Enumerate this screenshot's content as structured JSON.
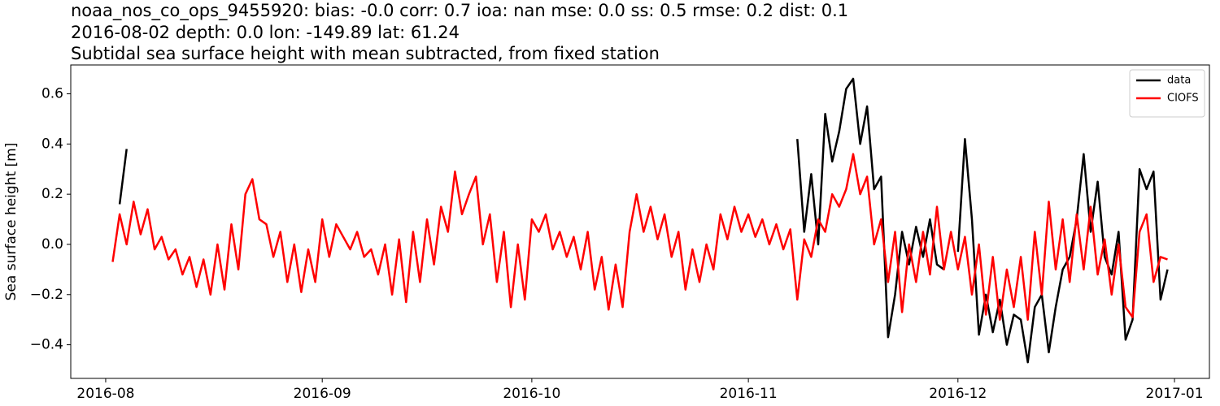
{
  "chart_data": {
    "type": "line",
    "title": [
      "noaa_nos_co_ops_9455920: bias: -0.0  corr: 0.7  ioa: nan  mse: 0.0  ss: 0.5  rmse: 0.2  dist: 0.1",
      "2016-08-02 depth: 0.0 lon: -149.89 lat: 61.24",
      "Subtidal sea surface height with mean subtracted, from fixed station"
    ],
    "ylabel": "Sea surface height [m]",
    "x": [
      "2016-08-02",
      "2016-08-03",
      "2016-08-04",
      "2016-08-05",
      "2016-08-06",
      "2016-08-07",
      "2016-08-08",
      "2016-08-09",
      "2016-08-10",
      "2016-08-11",
      "2016-08-12",
      "2016-08-13",
      "2016-08-14",
      "2016-08-15",
      "2016-08-16",
      "2016-08-17",
      "2016-08-18",
      "2016-08-19",
      "2016-08-20",
      "2016-08-21",
      "2016-08-22",
      "2016-08-23",
      "2016-08-24",
      "2016-08-25",
      "2016-08-26",
      "2016-08-27",
      "2016-08-28",
      "2016-08-29",
      "2016-08-30",
      "2016-08-31",
      "2016-09-01",
      "2016-09-02",
      "2016-09-03",
      "2016-09-04",
      "2016-09-05",
      "2016-09-06",
      "2016-09-07",
      "2016-09-08",
      "2016-09-09",
      "2016-09-10",
      "2016-09-11",
      "2016-09-12",
      "2016-09-13",
      "2016-09-14",
      "2016-09-15",
      "2016-09-16",
      "2016-09-17",
      "2016-09-18",
      "2016-09-19",
      "2016-09-20",
      "2016-09-21",
      "2016-09-22",
      "2016-09-23",
      "2016-09-24",
      "2016-09-25",
      "2016-09-26",
      "2016-09-27",
      "2016-09-28",
      "2016-09-29",
      "2016-09-30",
      "2016-10-01",
      "2016-10-02",
      "2016-10-03",
      "2016-10-04",
      "2016-10-05",
      "2016-10-06",
      "2016-10-07",
      "2016-10-08",
      "2016-10-09",
      "2016-10-10",
      "2016-10-11",
      "2016-10-12",
      "2016-10-13",
      "2016-10-14",
      "2016-10-15",
      "2016-10-16",
      "2016-10-17",
      "2016-10-18",
      "2016-10-19",
      "2016-10-20",
      "2016-10-21",
      "2016-10-22",
      "2016-10-23",
      "2016-10-24",
      "2016-10-25",
      "2016-10-26",
      "2016-10-27",
      "2016-10-28",
      "2016-10-29",
      "2016-10-30",
      "2016-10-31",
      "2016-11-01",
      "2016-11-02",
      "2016-11-03",
      "2016-11-04",
      "2016-11-05",
      "2016-11-06",
      "2016-11-07",
      "2016-11-08",
      "2016-11-09",
      "2016-11-10",
      "2016-11-11",
      "2016-11-12",
      "2016-11-13",
      "2016-11-14",
      "2016-11-15",
      "2016-11-16",
      "2016-11-17",
      "2016-11-18",
      "2016-11-19",
      "2016-11-20",
      "2016-11-21",
      "2016-11-22",
      "2016-11-23",
      "2016-11-24",
      "2016-11-25",
      "2016-11-26",
      "2016-11-27",
      "2016-11-28",
      "2016-11-29",
      "2016-11-30",
      "2016-12-01",
      "2016-12-02",
      "2016-12-03",
      "2016-12-04",
      "2016-12-05",
      "2016-12-06",
      "2016-12-07",
      "2016-12-08",
      "2016-12-09",
      "2016-12-10",
      "2016-12-11",
      "2016-12-12",
      "2016-12-13",
      "2016-12-14",
      "2016-12-15",
      "2016-12-16",
      "2016-12-17",
      "2016-12-18",
      "2016-12-19",
      "2016-12-20",
      "2016-12-21",
      "2016-12-22",
      "2016-12-23",
      "2016-12-24",
      "2016-12-25",
      "2016-12-26",
      "2016-12-27",
      "2016-12-28",
      "2016-12-29",
      "2016-12-30",
      "2016-12-31"
    ],
    "series": [
      {
        "name": "data",
        "color": "#000000",
        "values": [
          null,
          0.16,
          0.38,
          null,
          null,
          null,
          null,
          null,
          null,
          null,
          null,
          null,
          null,
          null,
          null,
          null,
          null,
          null,
          null,
          null,
          null,
          null,
          null,
          null,
          null,
          null,
          null,
          null,
          null,
          null,
          null,
          null,
          null,
          null,
          null,
          null,
          null,
          null,
          null,
          null,
          null,
          null,
          null,
          null,
          null,
          null,
          null,
          null,
          null,
          null,
          null,
          null,
          null,
          null,
          null,
          null,
          null,
          null,
          null,
          null,
          null,
          null,
          null,
          null,
          null,
          null,
          null,
          null,
          null,
          null,
          null,
          null,
          null,
          null,
          null,
          null,
          null,
          null,
          null,
          null,
          null,
          null,
          null,
          null,
          null,
          null,
          null,
          null,
          null,
          null,
          null,
          null,
          null,
          null,
          null,
          null,
          null,
          null,
          0.42,
          0.05,
          0.28,
          0.0,
          0.52,
          0.33,
          0.45,
          0.62,
          0.66,
          0.4,
          0.55,
          0.22,
          0.27,
          -0.37,
          -0.2,
          0.05,
          -0.08,
          0.07,
          -0.05,
          0.1,
          -0.08,
          -0.1,
          null,
          -0.03,
          0.42,
          0.1,
          -0.36,
          -0.2,
          -0.35,
          -0.22,
          -0.4,
          -0.28,
          -0.3,
          -0.47,
          -0.25,
          -0.2,
          -0.43,
          -0.25,
          -0.1,
          -0.05,
          0.1,
          0.36,
          0.05,
          0.25,
          -0.05,
          -0.12,
          0.05,
          -0.38,
          -0.3,
          0.3,
          0.22,
          0.29,
          -0.22,
          -0.1
        ]
      },
      {
        "name": "CIOFS",
        "color": "#ff0000",
        "values": [
          -0.07,
          0.12,
          0.0,
          0.17,
          0.04,
          0.14,
          -0.02,
          0.03,
          -0.06,
          -0.02,
          -0.12,
          -0.05,
          -0.17,
          -0.06,
          -0.2,
          0.0,
          -0.18,
          0.08,
          -0.1,
          0.2,
          0.26,
          0.1,
          0.08,
          -0.05,
          0.05,
          -0.15,
          0.0,
          -0.19,
          -0.02,
          -0.15,
          0.1,
          -0.05,
          0.08,
          0.03,
          -0.02,
          0.05,
          -0.05,
          -0.02,
          -0.12,
          0.0,
          -0.2,
          0.02,
          -0.23,
          0.05,
          -0.15,
          0.1,
          -0.08,
          0.15,
          0.05,
          0.29,
          0.12,
          0.2,
          0.27,
          0.0,
          0.12,
          -0.15,
          0.05,
          -0.25,
          0.0,
          -0.22,
          0.1,
          0.05,
          0.12,
          -0.02,
          0.05,
          -0.05,
          0.03,
          -0.1,
          0.05,
          -0.18,
          -0.05,
          -0.26,
          -0.08,
          -0.25,
          0.05,
          0.2,
          0.05,
          0.15,
          0.02,
          0.12,
          -0.05,
          0.05,
          -0.18,
          -0.02,
          -0.15,
          0.0,
          -0.1,
          0.12,
          0.02,
          0.15,
          0.05,
          0.12,
          0.03,
          0.1,
          0.0,
          0.08,
          -0.02,
          0.06,
          -0.22,
          0.02,
          -0.05,
          0.1,
          0.05,
          0.2,
          0.15,
          0.22,
          0.36,
          0.2,
          0.27,
          0.0,
          0.1,
          -0.15,
          0.05,
          -0.27,
          0.0,
          -0.15,
          0.05,
          -0.12,
          0.15,
          -0.1,
          0.05,
          -0.1,
          0.03,
          -0.2,
          0.0,
          -0.28,
          -0.05,
          -0.3,
          -0.1,
          -0.25,
          -0.05,
          -0.3,
          0.05,
          -0.2,
          0.17,
          -0.1,
          0.1,
          -0.15,
          0.12,
          -0.1,
          0.15,
          -0.12,
          0.02,
          -0.2,
          0.0,
          -0.25,
          -0.29,
          0.05,
          0.12,
          -0.15,
          -0.05,
          -0.06
        ]
      }
    ],
    "xlim": [
      "2016-07-27",
      "2017-01-06"
    ],
    "xticks": [
      {
        "value": "2016-08-01",
        "label": "2016-08"
      },
      {
        "value": "2016-09-01",
        "label": "2016-09"
      },
      {
        "value": "2016-10-01",
        "label": "2016-10"
      },
      {
        "value": "2016-11-01",
        "label": "2016-11"
      },
      {
        "value": "2016-12-01",
        "label": "2016-12"
      },
      {
        "value": "2017-01-01",
        "label": "2017-01"
      }
    ],
    "ylim": [
      -0.534,
      0.715
    ],
    "yticks": [
      {
        "value": -0.4,
        "label": "−0.4"
      },
      {
        "value": -0.2,
        "label": "−0.2"
      },
      {
        "value": 0,
        "label": "0.0"
      },
      {
        "value": 0.2,
        "label": "0.2"
      },
      {
        "value": 0.4,
        "label": "0.4"
      },
      {
        "value": 0.6,
        "label": "0.6"
      }
    ],
    "grid": false,
    "legend": "upper right"
  }
}
